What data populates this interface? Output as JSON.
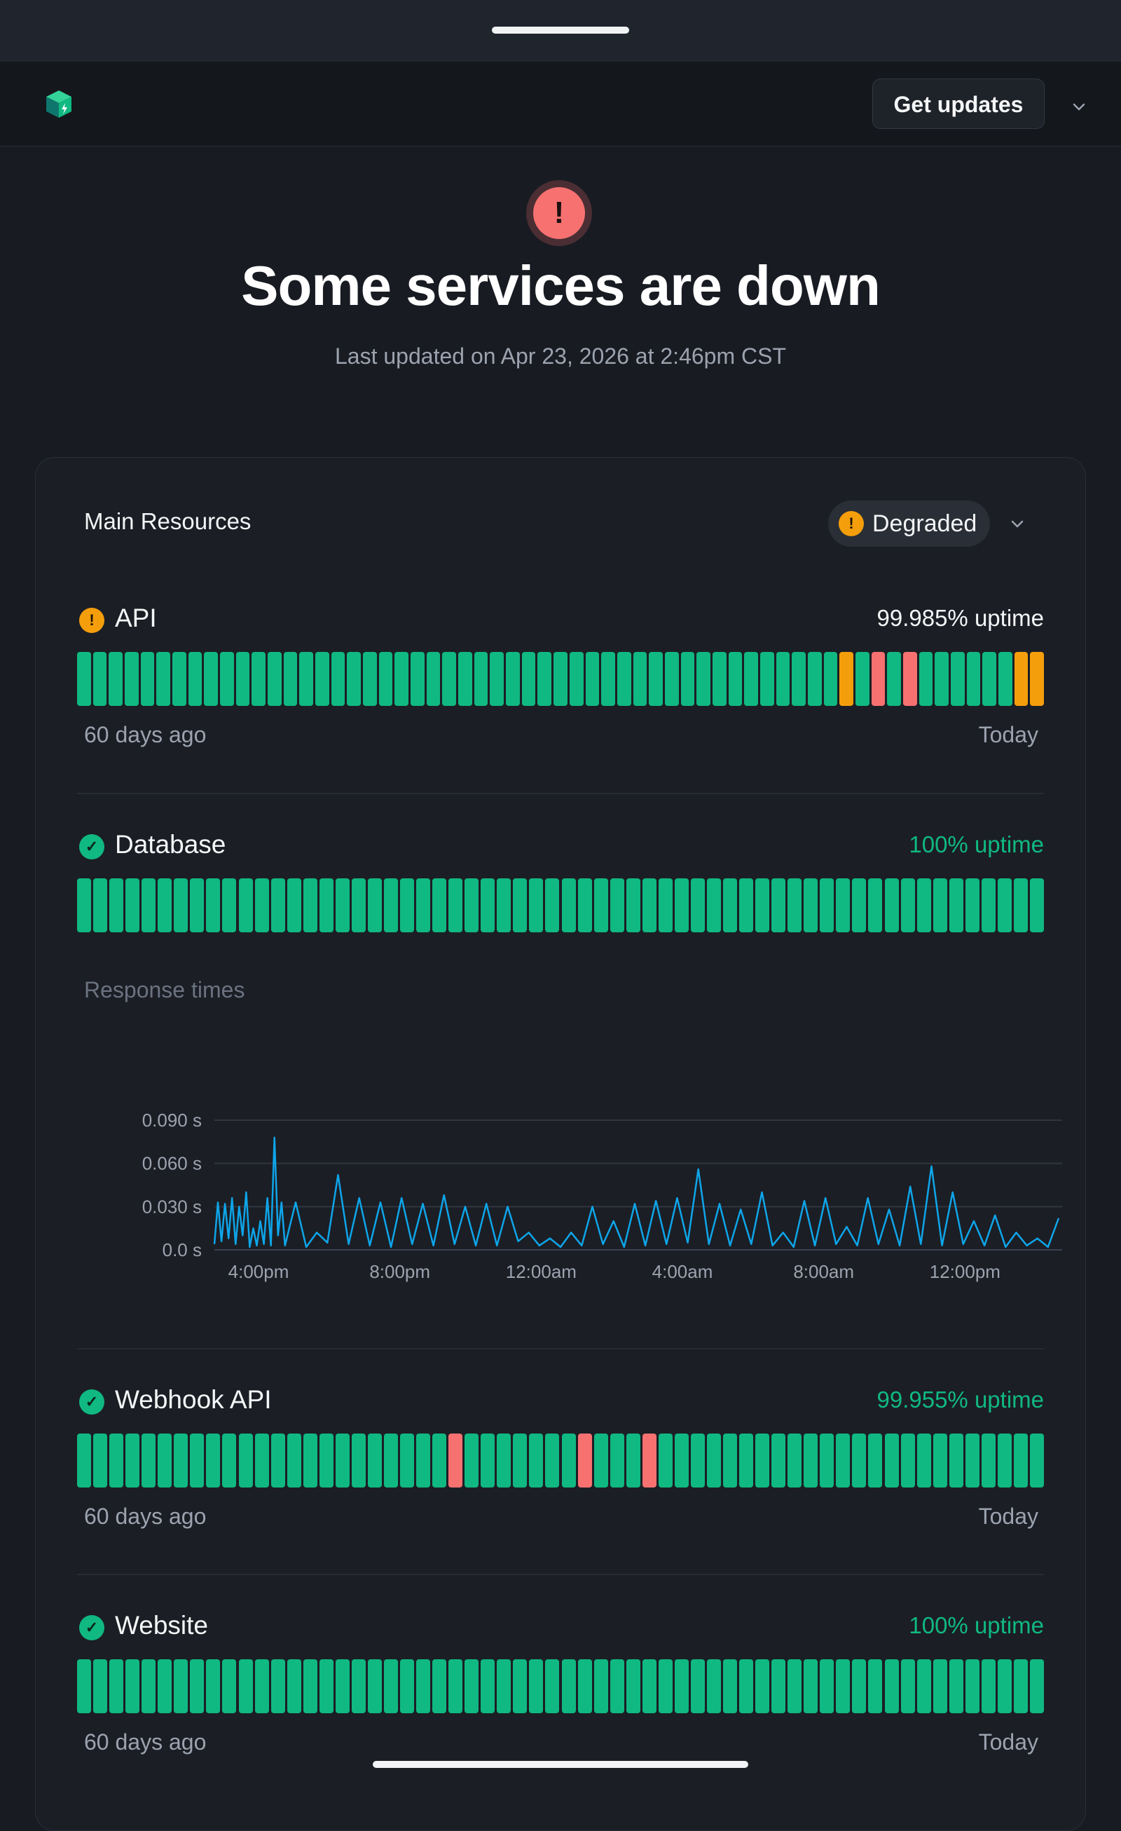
{
  "header": {
    "get_updates_label": "Get updates"
  },
  "hero": {
    "icon": "exclamation-icon",
    "icon_glyph": "!",
    "title": "Some services are down",
    "subtitle": "Last updated on Apr 23, 2026 at 2:46pm CST"
  },
  "card": {
    "title": "Main Resources",
    "status_label": "Degraded",
    "status_glyph": "!"
  },
  "colors": {
    "up": "#10b981",
    "degraded": "#f59e0b",
    "down": "#f87171",
    "line": "#0ea5e9"
  },
  "services": [
    {
      "name": "API",
      "status": "degraded",
      "status_glyph": "!",
      "uptime": "99.985% uptime",
      "uptime_style": "plain",
      "range_start": "60 days ago",
      "range_end": "Today",
      "days": "ggggggggggggggggggggggggggggggggggggggggggggggggygrgrggggggyy"
    },
    {
      "name": "Database",
      "status": "operational",
      "status_glyph": "✓",
      "uptime": "100% uptime",
      "uptime_style": "good",
      "range_start": "",
      "range_end": "",
      "days": "gggggggggggggggggggggggggggggggggggggggggggggggggggggggggggg"
    },
    {
      "name": "Webhook API",
      "status": "operational",
      "status_glyph": "✓",
      "uptime": "99.955% uptime",
      "uptime_style": "good",
      "range_start": "60 days ago",
      "range_end": "Today",
      "days": "gggggggggggggggggggggggrgggggggrgggrgggggggggggggggggggggggg"
    },
    {
      "name": "Website",
      "status": "operational",
      "status_glyph": "✓",
      "uptime": "100% uptime",
      "uptime_style": "good",
      "range_start": "60 days ago",
      "range_end": "Today",
      "days": "gggggggggggggggggggggggggggggggggggggggggggggggggggggggggggg"
    }
  ],
  "response_times": {
    "title": "Response times"
  },
  "chart_data": {
    "type": "line",
    "title": "Response times",
    "xlabel": "",
    "ylabel": "",
    "ylim": [
      0,
      0.09
    ],
    "y_ticks": [
      0.0,
      0.03,
      0.06,
      0.09
    ],
    "y_tick_labels": [
      "0.0 s",
      "0.030 s",
      "0.060 s",
      "0.090 s"
    ],
    "x_tick_labels": [
      "4:00pm",
      "8:00pm",
      "12:00am",
      "4:00am",
      "8:00am",
      "12:00pm"
    ],
    "x_tick_hours": [
      1.25,
      5.25,
      9.25,
      13.25,
      17.25,
      21.25
    ],
    "x_range_hours": [
      0,
      24
    ],
    "grid": true,
    "series": [
      {
        "x_hours": [
          0,
          0.1,
          0.2,
          0.3,
          0.4,
          0.5,
          0.6,
          0.7,
          0.8,
          0.9,
          1.0,
          1.1,
          1.2,
          1.3,
          1.4,
          1.5,
          1.6,
          1.7,
          1.8,
          1.9,
          2.0,
          2.3,
          2.6,
          2.9,
          3.2,
          3.5,
          3.8,
          4.1,
          4.4,
          4.7,
          5.0,
          5.3,
          5.6,
          5.9,
          6.2,
          6.5,
          6.8,
          7.1,
          7.4,
          7.7,
          8.0,
          8.3,
          8.6,
          8.9,
          9.2,
          9.5,
          9.8,
          10.1,
          10.4,
          10.7,
          11.0,
          11.3,
          11.6,
          11.9,
          12.2,
          12.5,
          12.8,
          13.1,
          13.4,
          13.7,
          14.0,
          14.3,
          14.6,
          14.9,
          15.2,
          15.5,
          15.8,
          16.1,
          16.4,
          16.7,
          17.0,
          17.3,
          17.6,
          17.9,
          18.2,
          18.5,
          18.8,
          19.1,
          19.4,
          19.7,
          20.0,
          20.3,
          20.6,
          20.9,
          21.2,
          21.5,
          21.8,
          22.1,
          22.4,
          22.7,
          23.0,
          23.3,
          23.6,
          23.9
        ],
        "values": [
          0.004,
          0.033,
          0.006,
          0.032,
          0.008,
          0.036,
          0.004,
          0.03,
          0.01,
          0.04,
          0.002,
          0.015,
          0.003,
          0.02,
          0.004,
          0.036,
          0.003,
          0.078,
          0.01,
          0.033,
          0.003,
          0.033,
          0.002,
          0.012,
          0.005,
          0.052,
          0.004,
          0.036,
          0.003,
          0.033,
          0.002,
          0.036,
          0.004,
          0.032,
          0.003,
          0.038,
          0.004,
          0.03,
          0.003,
          0.032,
          0.003,
          0.03,
          0.006,
          0.012,
          0.003,
          0.008,
          0.002,
          0.012,
          0.003,
          0.03,
          0.004,
          0.02,
          0.002,
          0.032,
          0.003,
          0.034,
          0.004,
          0.036,
          0.005,
          0.056,
          0.004,
          0.032,
          0.003,
          0.028,
          0.004,
          0.04,
          0.003,
          0.012,
          0.002,
          0.034,
          0.003,
          0.036,
          0.004,
          0.016,
          0.003,
          0.036,
          0.004,
          0.028,
          0.003,
          0.044,
          0.004,
          0.058,
          0.003,
          0.04,
          0.004,
          0.02,
          0.003,
          0.024,
          0.002,
          0.012,
          0.003,
          0.008,
          0.002,
          0.022
        ]
      }
    ]
  }
}
